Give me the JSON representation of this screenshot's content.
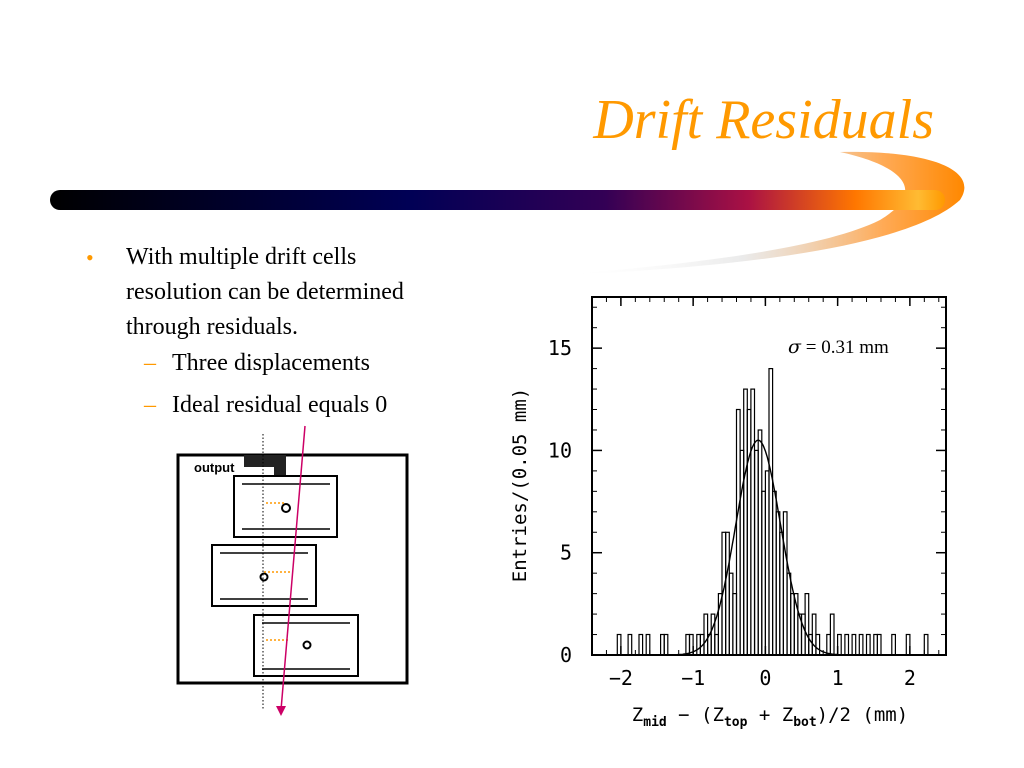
{
  "slide": {
    "title": "Drift Residuals",
    "bullets": [
      {
        "text": "With multiple drift cells resolution can be determined through residuals."
      }
    ],
    "sub_bullets": [
      {
        "text": "Three displacements"
      },
      {
        "text": "Ideal residual equals 0"
      }
    ],
    "bullet_mark": "•",
    "dash_mark": "–"
  },
  "diagram": {
    "output_label": "output"
  },
  "colors": {
    "title": "#ff9900",
    "bullet": "#ff9900",
    "track": "#cc0066",
    "offset_lines": "#ff9900",
    "bar_start": "#000000",
    "bar_mid": "#000066",
    "bar_end": "#ff9900"
  },
  "chart_data": {
    "type": "histogram",
    "xlim": [
      -2.4,
      2.5
    ],
    "ylim": [
      0,
      17.5
    ],
    "x_ticks": [
      {
        "value": -2,
        "label": "−2"
      },
      {
        "value": -1,
        "label": "−1"
      },
      {
        "value": 0,
        "label": "0"
      },
      {
        "value": 1,
        "label": "1"
      },
      {
        "value": 2,
        "label": "2"
      }
    ],
    "y_ticks": [
      {
        "value": 0,
        "label": "0"
      },
      {
        "value": 5,
        "label": "5"
      },
      {
        "value": 10,
        "label": "10"
      },
      {
        "value": 15,
        "label": "15"
      }
    ],
    "xlabel_parts": {
      "z": "Z",
      "mid": "mid",
      "mid_text": " − (Z",
      "top": "top",
      "plus": " + Z",
      "bot": "bot",
      "tail": ")/2 (mm)"
    },
    "ylabel": "Entries/(0.05 mm)",
    "annotation": {
      "symbol": "σ",
      "text": " = 0.31 mm"
    },
    "bin_width": 0.05,
    "bins": [
      {
        "x": -2.05,
        "y": 1
      },
      {
        "x": -2.0,
        "y": 0
      },
      {
        "x": -1.9,
        "y": 1
      },
      {
        "x": -1.75,
        "y": 1
      },
      {
        "x": -1.65,
        "y": 1
      },
      {
        "x": -1.45,
        "y": 1
      },
      {
        "x": -1.4,
        "y": 1
      },
      {
        "x": -1.1,
        "y": 1
      },
      {
        "x": -1.05,
        "y": 1
      },
      {
        "x": -0.95,
        "y": 1
      },
      {
        "x": -0.9,
        "y": 1
      },
      {
        "x": -0.85,
        "y": 2
      },
      {
        "x": -0.8,
        "y": 1
      },
      {
        "x": -0.75,
        "y": 2
      },
      {
        "x": -0.7,
        "y": 1
      },
      {
        "x": -0.65,
        "y": 3
      },
      {
        "x": -0.6,
        "y": 6
      },
      {
        "x": -0.55,
        "y": 6
      },
      {
        "x": -0.5,
        "y": 4
      },
      {
        "x": -0.45,
        "y": 3
      },
      {
        "x": -0.4,
        "y": 12
      },
      {
        "x": -0.35,
        "y": 10
      },
      {
        "x": -0.3,
        "y": 13
      },
      {
        "x": -0.25,
        "y": 12
      },
      {
        "x": -0.2,
        "y": 13
      },
      {
        "x": -0.15,
        "y": 10
      },
      {
        "x": -0.1,
        "y": 11
      },
      {
        "x": -0.05,
        "y": 8
      },
      {
        "x": 0.0,
        "y": 9
      },
      {
        "x": 0.05,
        "y": 14
      },
      {
        "x": 0.1,
        "y": 8
      },
      {
        "x": 0.15,
        "y": 7
      },
      {
        "x": 0.2,
        "y": 6
      },
      {
        "x": 0.25,
        "y": 7
      },
      {
        "x": 0.3,
        "y": 4
      },
      {
        "x": 0.35,
        "y": 3
      },
      {
        "x": 0.4,
        "y": 3
      },
      {
        "x": 0.45,
        "y": 2
      },
      {
        "x": 0.5,
        "y": 2
      },
      {
        "x": 0.55,
        "y": 3
      },
      {
        "x": 0.6,
        "y": 1
      },
      {
        "x": 0.65,
        "y": 2
      },
      {
        "x": 0.7,
        "y": 1
      },
      {
        "x": 0.75,
        "y": 0
      },
      {
        "x": 0.85,
        "y": 1
      },
      {
        "x": 0.9,
        "y": 2
      },
      {
        "x": 1.0,
        "y": 1
      },
      {
        "x": 1.1,
        "y": 1
      },
      {
        "x": 1.2,
        "y": 1
      },
      {
        "x": 1.3,
        "y": 1
      },
      {
        "x": 1.4,
        "y": 1
      },
      {
        "x": 1.5,
        "y": 1
      },
      {
        "x": 1.55,
        "y": 1
      },
      {
        "x": 1.75,
        "y": 1
      },
      {
        "x": 1.95,
        "y": 1
      },
      {
        "x": 2.2,
        "y": 1
      }
    ],
    "fit": {
      "type": "gaussian",
      "mean": -0.1,
      "sigma": 0.31,
      "amplitude": 10.5
    }
  }
}
